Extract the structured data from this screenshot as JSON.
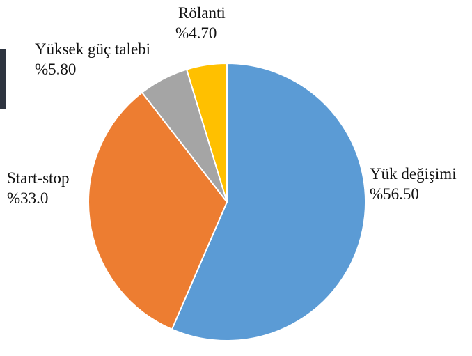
{
  "chart_data": {
    "type": "pie",
    "title": "",
    "slices": [
      {
        "label": "Yük değişimi",
        "value": 56.5,
        "value_label": "%56.50",
        "color": "#5b9bd5"
      },
      {
        "label": "Start-stop",
        "value": 33.0,
        "value_label": "%33.0",
        "color": "#ed7d31"
      },
      {
        "label": "Yüksek güç talebi",
        "value": 5.8,
        "value_label": "%5.80",
        "color": "#a5a5a5"
      },
      {
        "label": "Rölanti",
        "value": 4.7,
        "value_label": "%4.70",
        "color": "#ffc000"
      }
    ],
    "start_angle": "12 o'clock",
    "direction": "clockwise",
    "legend": "none"
  }
}
